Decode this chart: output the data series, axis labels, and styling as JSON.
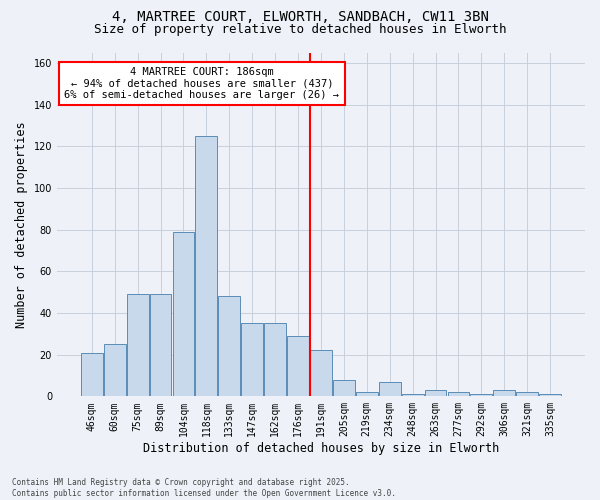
{
  "title1": "4, MARTREE COURT, ELWORTH, SANDBACH, CW11 3BN",
  "title2": "Size of property relative to detached houses in Elworth",
  "xlabel": "Distribution of detached houses by size in Elworth",
  "ylabel": "Number of detached properties",
  "categories": [
    "46sqm",
    "60sqm",
    "75sqm",
    "89sqm",
    "104sqm",
    "118sqm",
    "133sqm",
    "147sqm",
    "162sqm",
    "176sqm",
    "191sqm",
    "205sqm",
    "219sqm",
    "234sqm",
    "248sqm",
    "263sqm",
    "277sqm",
    "292sqm",
    "306sqm",
    "321sqm",
    "335sqm"
  ],
  "values": [
    21,
    25,
    49,
    49,
    79,
    125,
    48,
    35,
    35,
    29,
    22,
    8,
    2,
    7,
    1,
    3,
    2,
    1,
    3,
    2,
    1
  ],
  "bar_color": "#c9d9ec",
  "bar_edge_color": "#5b8db8",
  "red_line_index": 10,
  "annotation_text": "4 MARTREE COURT: 186sqm\n← 94% of detached houses are smaller (437)\n6% of semi-detached houses are larger (26) →",
  "annotation_box_color": "white",
  "annotation_box_edge_color": "red",
  "red_line_color": "red",
  "grid_color": "#c8d0dc",
  "background_color": "#eef2f8",
  "footnote": "Contains HM Land Registry data © Crown copyright and database right 2025.\nContains public sector information licensed under the Open Government Licence v3.0.",
  "ylim": [
    0,
    165
  ],
  "yticks": [
    0,
    20,
    40,
    60,
    80,
    100,
    120,
    140,
    160
  ],
  "title_fontsize": 10,
  "subtitle_fontsize": 9,
  "tick_fontsize": 7,
  "ylabel_fontsize": 8.5,
  "xlabel_fontsize": 8.5,
  "annotation_fontsize": 7.5,
  "footnote_fontsize": 5.5
}
